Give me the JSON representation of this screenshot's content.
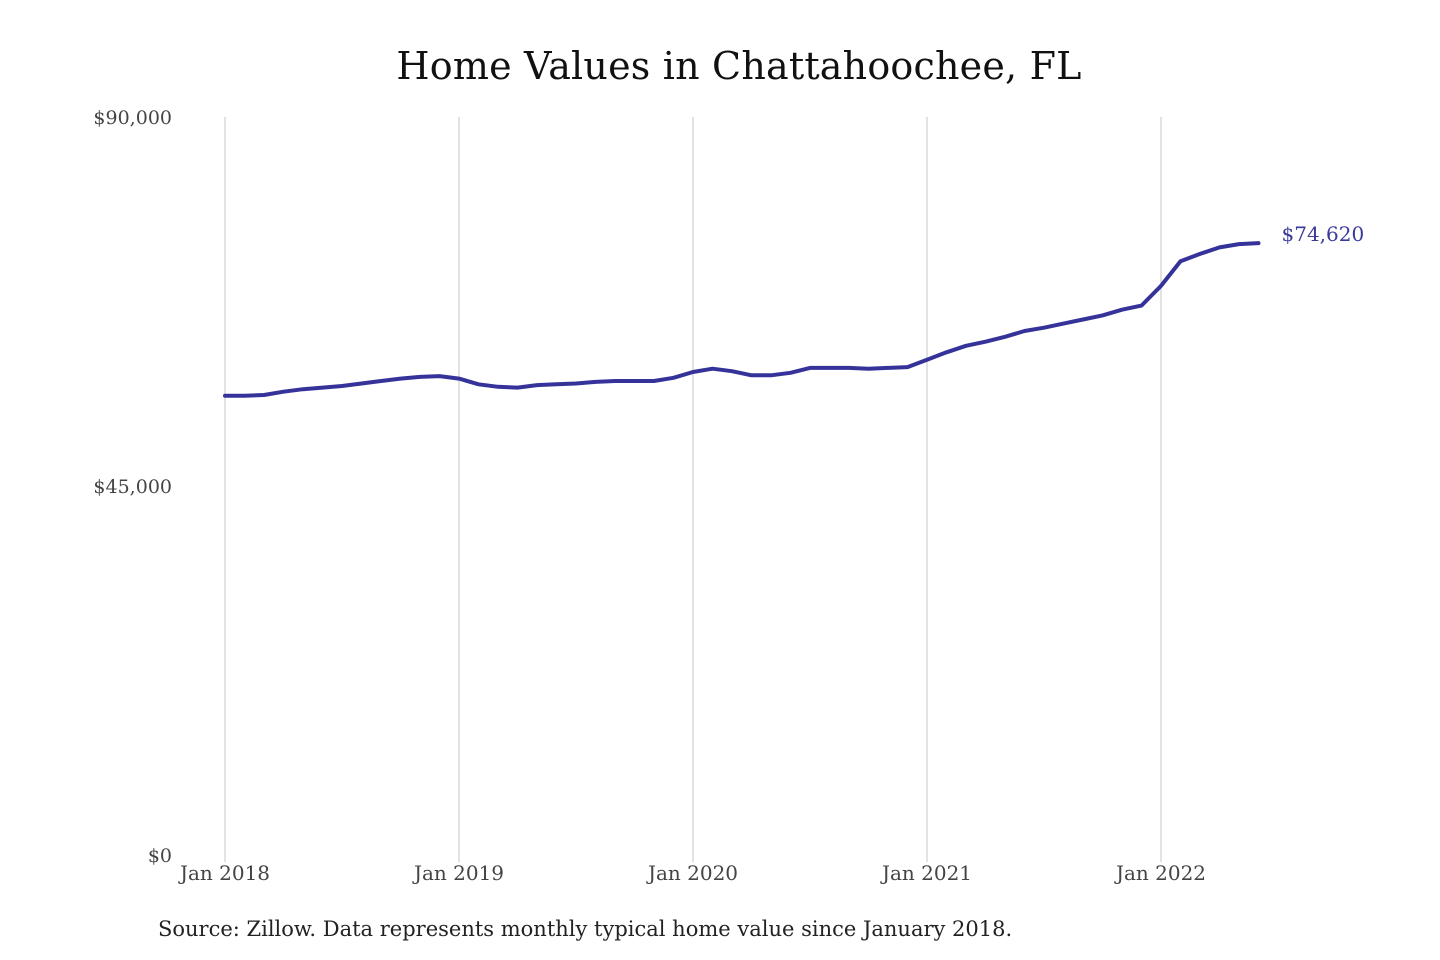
{
  "title": "Home Values in Chattahoochee, FL",
  "source": "Source: Zillow. Data represents monthly typical home value since January 2018.",
  "chart_data": {
    "type": "line",
    "title": "Home Values in Chattahoochee, FL",
    "xlabel": "",
    "ylabel": "",
    "ylim": [
      0,
      90000
    ],
    "yticks": [
      {
        "value": 90000,
        "label": "$90,000"
      },
      {
        "value": 45000,
        "label": "$45,000"
      },
      {
        "value": 0,
        "label": "$0"
      }
    ],
    "xticks": [
      {
        "x": "2018-01",
        "label": "Jan 2018"
      },
      {
        "x": "2019-01",
        "label": "Jan 2019"
      },
      {
        "x": "2020-01",
        "label": "Jan 2020"
      },
      {
        "x": "2021-01",
        "label": "Jan 2021"
      },
      {
        "x": "2022-01",
        "label": "Jan 2022"
      }
    ],
    "grid": "vertical",
    "color": "#35339a",
    "end_label": "$74,620",
    "series": [
      {
        "x": [
          "2018-01",
          "2018-02",
          "2018-03",
          "2018-04",
          "2018-05",
          "2018-06",
          "2018-07",
          "2018-08",
          "2018-09",
          "2018-10",
          "2018-11",
          "2018-12",
          "2019-01",
          "2019-02",
          "2019-03",
          "2019-04",
          "2019-05",
          "2019-06",
          "2019-07",
          "2019-08",
          "2019-09",
          "2019-10",
          "2019-11",
          "2019-12",
          "2020-01",
          "2020-02",
          "2020-03",
          "2020-04",
          "2020-05",
          "2020-06",
          "2020-07",
          "2020-08",
          "2020-09",
          "2020-10",
          "2020-11",
          "2020-12",
          "2021-01",
          "2021-02",
          "2021-03",
          "2021-04",
          "2021-05",
          "2021-06",
          "2021-07",
          "2021-08",
          "2021-09",
          "2021-10",
          "2021-11",
          "2021-12",
          "2022-01",
          "2022-02",
          "2022-03",
          "2022-04",
          "2022-05",
          "2022-06"
        ],
        "values": [
          56000,
          56000,
          56100,
          56500,
          56800,
          57000,
          57200,
          57500,
          57800,
          58100,
          58300,
          58400,
          58100,
          57400,
          57100,
          57000,
          57300,
          57400,
          57500,
          57700,
          57800,
          57800,
          57800,
          58200,
          58900,
          59300,
          59000,
          58500,
          58500,
          58800,
          59400,
          59400,
          59400,
          59300,
          59400,
          59500,
          60400,
          61300,
          62100,
          62600,
          63200,
          63900,
          64300,
          64800,
          65300,
          65800,
          66500,
          67000,
          69400,
          72400,
          73300,
          74100,
          74500,
          74620
        ]
      }
    ]
  }
}
